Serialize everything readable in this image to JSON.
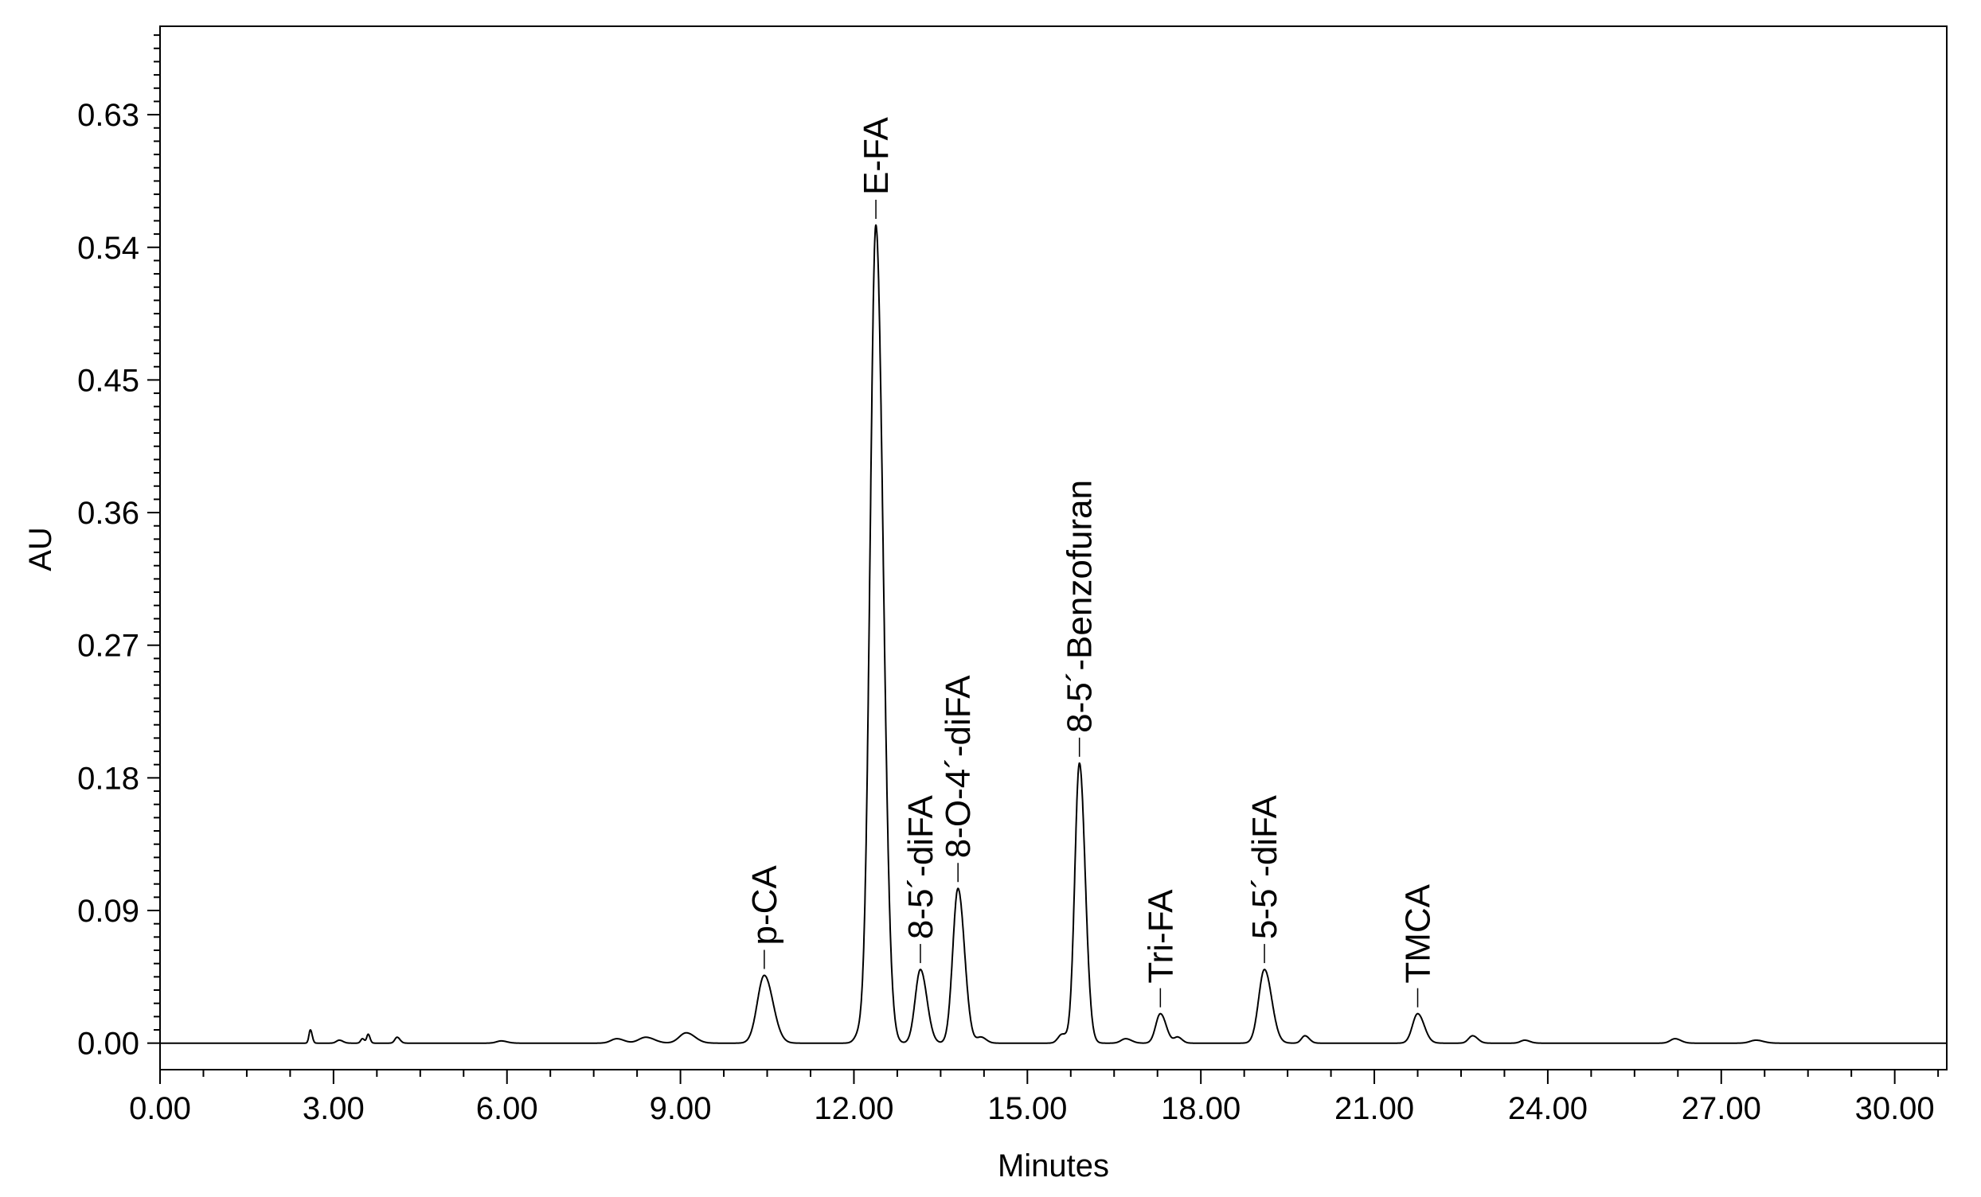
{
  "chart_data": {
    "type": "line",
    "title": "",
    "xlabel": "Minutes",
    "ylabel": "AU",
    "xlim": [
      0,
      30.9
    ],
    "ylim": [
      -0.018,
      0.69
    ],
    "x_ticks": [
      0,
      3,
      6,
      9,
      12,
      15,
      18,
      21,
      24,
      27,
      30
    ],
    "x_tick_labels": [
      "0.00",
      "3.00",
      "6.00",
      "9.00",
      "12.00",
      "15.00",
      "18.00",
      "21.00",
      "24.00",
      "27.00",
      "30.00"
    ],
    "y_ticks": [
      0,
      0.09,
      0.18,
      0.27,
      0.36,
      0.45,
      0.54,
      0.63
    ],
    "y_tick_labels": [
      "0.00",
      "0.09",
      "0.18",
      "0.27",
      "0.36",
      "0.45",
      "0.54",
      "0.63"
    ],
    "grid": false,
    "legend": "none",
    "line_color": "#000000",
    "baseline_au": 0.0,
    "peaks": [
      {
        "label": "p-CA",
        "rt": 10.45,
        "au": 0.046,
        "width": 0.12
      },
      {
        "label": "E-FA",
        "rt": 12.38,
        "au": 0.555,
        "width": 0.1
      },
      {
        "label": "8-5´-diFA",
        "rt": 13.15,
        "au": 0.05,
        "width": 0.09
      },
      {
        "label": "8-O-4´-diFA",
        "rt": 13.8,
        "au": 0.105,
        "width": 0.09
      },
      {
        "label": "8-5´-Benzofuran",
        "rt": 15.9,
        "au": 0.19,
        "width": 0.08
      },
      {
        "label": "Tri-FA",
        "rt": 17.3,
        "au": 0.02,
        "width": 0.08
      },
      {
        "label": "5-5´-diFA",
        "rt": 19.1,
        "au": 0.05,
        "width": 0.1
      },
      {
        "label": "TMCA",
        "rt": 21.75,
        "au": 0.02,
        "width": 0.09
      }
    ],
    "minor_peaks": [
      {
        "rt": 2.6,
        "au": 0.009,
        "width": 0.025
      },
      {
        "rt": 3.1,
        "au": 0.002,
        "width": 0.05
      },
      {
        "rt": 3.6,
        "au": 0.006,
        "width": 0.025
      },
      {
        "rt": 3.5,
        "au": 0.003,
        "width": 0.03
      },
      {
        "rt": 4.1,
        "au": 0.004,
        "width": 0.04
      },
      {
        "rt": 5.9,
        "au": 0.0015,
        "width": 0.08
      },
      {
        "rt": 7.9,
        "au": 0.003,
        "width": 0.1
      },
      {
        "rt": 8.4,
        "au": 0.004,
        "width": 0.12
      },
      {
        "rt": 9.1,
        "au": 0.007,
        "width": 0.12
      },
      {
        "rt": 12.1,
        "au": 0.006,
        "width": 0.08
      },
      {
        "rt": 14.2,
        "au": 0.004,
        "width": 0.07
      },
      {
        "rt": 15.6,
        "au": 0.006,
        "width": 0.07
      },
      {
        "rt": 16.7,
        "au": 0.003,
        "width": 0.08
      },
      {
        "rt": 17.6,
        "au": 0.004,
        "width": 0.06
      },
      {
        "rt": 19.8,
        "au": 0.005,
        "width": 0.06
      },
      {
        "rt": 22.7,
        "au": 0.005,
        "width": 0.07
      },
      {
        "rt": 23.6,
        "au": 0.002,
        "width": 0.07
      },
      {
        "rt": 26.2,
        "au": 0.003,
        "width": 0.08
      },
      {
        "rt": 27.6,
        "au": 0.002,
        "width": 0.1
      }
    ]
  }
}
